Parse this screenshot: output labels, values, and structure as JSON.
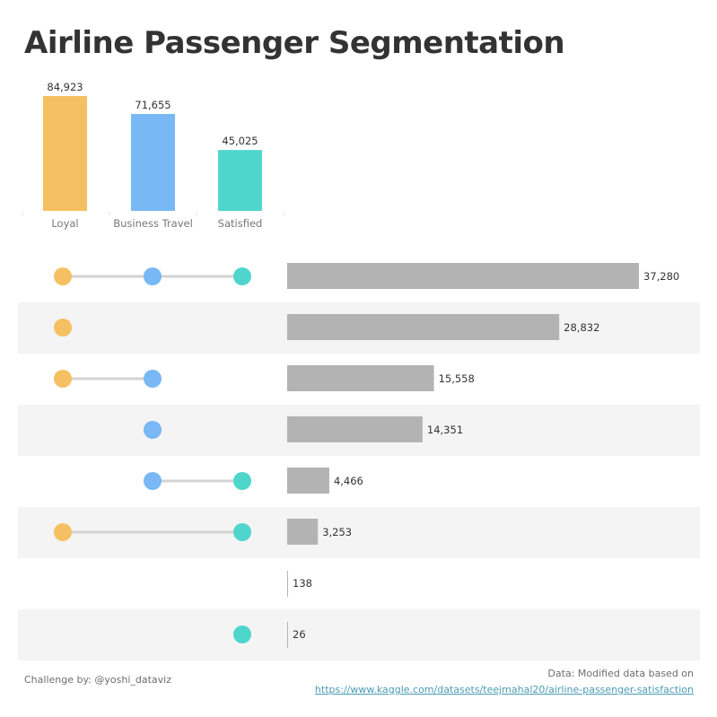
{
  "title": "Airline Passenger Segmentation",
  "colors": {
    "loyal": "#f5c062",
    "business": "#78b8f4",
    "satisfied": "#4fd6cc",
    "bar": "#b3b3b3",
    "connector": "#d3d3d3",
    "row_shade": "#f4f4f4"
  },
  "chart_data": [
    {
      "type": "bar",
      "title": "",
      "categories": [
        "Loyal",
        "Business Travel",
        "Satisfied"
      ],
      "values": [
        84923,
        71655,
        45025
      ],
      "value_labels": [
        "84,923",
        "71,655",
        "45,025"
      ],
      "ylim": [
        0,
        90000
      ],
      "xlabel": "",
      "ylabel": ""
    },
    {
      "type": "bar",
      "orientation": "horizontal",
      "description_sets": [
        "Loyal",
        "Business Travel",
        "Satisfied"
      ],
      "rows": [
        {
          "sets": [
            true,
            true,
            true
          ],
          "value": 37280,
          "label": "37,280"
        },
        {
          "sets": [
            true,
            false,
            false
          ],
          "value": 28832,
          "label": "28,832"
        },
        {
          "sets": [
            true,
            true,
            false
          ],
          "value": 15558,
          "label": "15,558"
        },
        {
          "sets": [
            false,
            true,
            false
          ],
          "value": 14351,
          "label": "14,351"
        },
        {
          "sets": [
            false,
            true,
            true
          ],
          "value": 4466,
          "label": "4,466"
        },
        {
          "sets": [
            true,
            false,
            true
          ],
          "value": 3253,
          "label": "3,253"
        },
        {
          "sets": [
            false,
            false,
            false
          ],
          "value": 138,
          "label": "138"
        },
        {
          "sets": [
            false,
            false,
            true
          ],
          "value": 26,
          "label": "26"
        }
      ],
      "xlim": [
        0,
        37280
      ]
    }
  ],
  "footer": {
    "credit": "Challenge by: @yoshi_dataviz",
    "source_prefix": "Data: Modified data based on",
    "source_link": "https://www.kaggle.com/datasets/teejmahal20/airline-passenger-satisfaction"
  }
}
